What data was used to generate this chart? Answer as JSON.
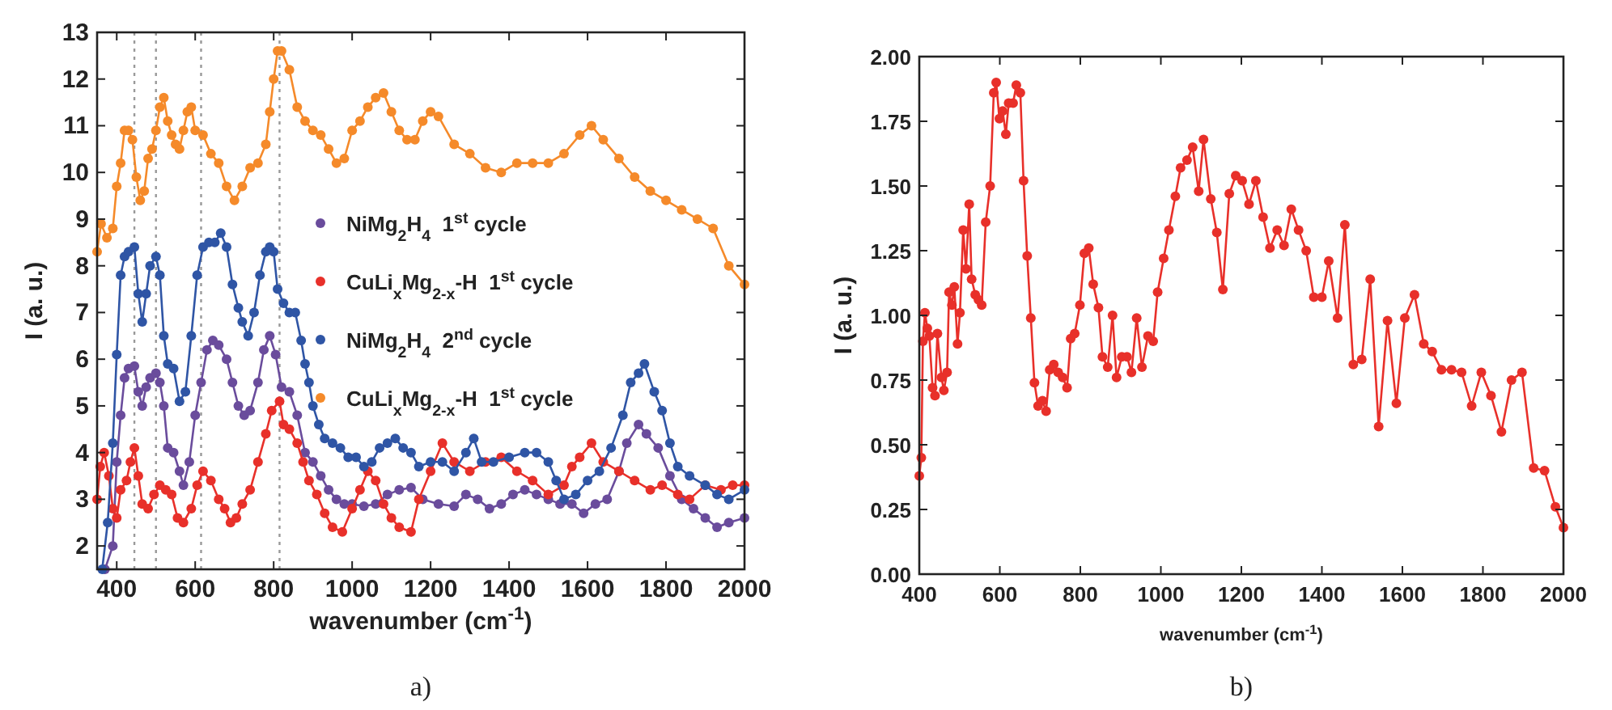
{
  "chart_data": [
    {
      "type": "line",
      "xlabel": "wavenumber (cm$^{-1}$)",
      "ylabel": "I (a. u.)",
      "xlim": [
        350,
        2000
      ],
      "ylim": [
        1.5,
        13
      ],
      "xticks": [
        400,
        600,
        800,
        1000,
        1200,
        1400,
        1600,
        1800,
        2000
      ],
      "yticks": [
        2,
        3,
        4,
        5,
        6,
        7,
        8,
        9,
        10,
        11,
        12,
        13
      ],
      "marker": "circle",
      "line_style": "solid",
      "legend": "right",
      "annotations": [
        "a)"
      ],
      "ref_lines": [
        {
          "axis": "x",
          "value": 445,
          "color": "#999999",
          "line_style": "dotted"
        },
        {
          "axis": "x",
          "value": 500,
          "color": "#999999",
          "line_style": "dotted"
        },
        {
          "axis": "x",
          "value": 615,
          "color": "#999999",
          "line_style": "dotted"
        },
        {
          "axis": "x",
          "value": 815,
          "color": "#999999",
          "line_style": "dotted"
        }
      ],
      "series": [
        {
          "name": "NiMg$_{2}$H$_{4}$  1$^{st}$ cycle",
          "color": "#6a4c9c",
          "x": [
            370,
            390,
            400,
            410,
            420,
            430,
            445,
            455,
            465,
            475,
            485,
            500,
            510,
            520,
            530,
            545,
            560,
            570,
            585,
            600,
            615,
            630,
            645,
            660,
            680,
            695,
            710,
            725,
            740,
            760,
            775,
            790,
            805,
            820,
            840,
            860,
            880,
            900,
            920,
            940,
            960,
            980,
            1000,
            1030,
            1060,
            1090,
            1120,
            1150,
            1180,
            1220,
            1260,
            1290,
            1320,
            1350,
            1380,
            1410,
            1440,
            1470,
            1500,
            1530,
            1560,
            1590,
            1620,
            1650,
            1680,
            1700,
            1730,
            1750,
            1780,
            1810,
            1840,
            1870,
            1900,
            1930,
            1960,
            2000
          ],
          "values": [
            1.5,
            2.0,
            3.8,
            4.8,
            5.6,
            5.8,
            5.85,
            5.3,
            5.0,
            5.4,
            5.6,
            5.7,
            5.5,
            5.0,
            4.1,
            4.0,
            3.6,
            3.3,
            3.8,
            4.8,
            5.5,
            6.2,
            6.4,
            6.3,
            6.0,
            5.5,
            5.0,
            4.8,
            4.9,
            5.5,
            6.2,
            6.5,
            6.1,
            5.4,
            5.3,
            4.8,
            4.0,
            3.8,
            3.5,
            3.2,
            3.0,
            2.9,
            2.9,
            2.85,
            2.9,
            3.1,
            3.2,
            3.25,
            3.0,
            2.9,
            2.85,
            3.1,
            3.0,
            2.8,
            2.9,
            3.1,
            3.2,
            3.1,
            3.0,
            2.9,
            2.9,
            2.7,
            2.9,
            3.0,
            3.6,
            4.2,
            4.6,
            4.4,
            4.1,
            3.5,
            3.0,
            2.8,
            2.6,
            2.4,
            2.5,
            2.6
          ]
        },
        {
          "name": "CuLi$_{x}$Mg$_{2-x}$-H  1$^{st}$ cycle",
          "color": "#e8302a",
          "x": [
            350,
            358,
            368,
            380,
            390,
            400,
            410,
            425,
            435,
            445,
            455,
            465,
            480,
            495,
            510,
            525,
            540,
            555,
            570,
            590,
            605,
            620,
            640,
            660,
            675,
            690,
            705,
            720,
            740,
            760,
            780,
            795,
            815,
            825,
            840,
            860,
            875,
            890,
            910,
            930,
            950,
            975,
            1000,
            1020,
            1040,
            1060,
            1080,
            1100,
            1120,
            1150,
            1170,
            1200,
            1230,
            1260,
            1300,
            1340,
            1380,
            1420,
            1460,
            1500,
            1540,
            1560,
            1580,
            1610,
            1640,
            1680,
            1720,
            1760,
            1790,
            1830,
            1860,
            1900,
            1940,
            1970,
            2000
          ],
          "values": [
            3.0,
            3.7,
            4.0,
            3.5,
            2.8,
            2.6,
            3.2,
            3.4,
            3.8,
            4.1,
            3.5,
            2.9,
            2.8,
            3.1,
            3.3,
            3.2,
            3.1,
            2.6,
            2.5,
            2.8,
            3.3,
            3.6,
            3.4,
            3.0,
            2.8,
            2.5,
            2.6,
            2.9,
            3.2,
            3.8,
            4.4,
            4.9,
            5.1,
            4.6,
            4.5,
            4.2,
            3.8,
            3.4,
            3.1,
            2.7,
            2.4,
            2.3,
            2.8,
            3.2,
            3.6,
            3.4,
            2.9,
            2.6,
            2.4,
            2.3,
            3.0,
            3.6,
            4.2,
            3.8,
            3.6,
            3.8,
            3.9,
            3.6,
            3.4,
            3.1,
            3.3,
            3.7,
            3.9,
            4.2,
            3.8,
            3.6,
            3.4,
            3.2,
            3.3,
            3.1,
            3.0,
            3.3,
            3.2,
            3.3,
            3.3
          ]
        },
        {
          "name": "NiMg$_{2}$H$_{4}$  2$^{nd}$ cycle",
          "color": "#2f55a5",
          "x": [
            363,
            377,
            390,
            400,
            410,
            420,
            430,
            445,
            455,
            465,
            475,
            485,
            500,
            510,
            520,
            530,
            545,
            560,
            575,
            590,
            605,
            620,
            635,
            650,
            665,
            680,
            695,
            710,
            720,
            735,
            750,
            765,
            780,
            790,
            800,
            810,
            825,
            840,
            855,
            870,
            880,
            890,
            900,
            915,
            930,
            950,
            970,
            990,
            1010,
            1030,
            1050,
            1070,
            1090,
            1110,
            1130,
            1150,
            1170,
            1200,
            1230,
            1260,
            1290,
            1310,
            1330,
            1360,
            1400,
            1440,
            1470,
            1500,
            1520,
            1540,
            1570,
            1600,
            1630,
            1660,
            1690,
            1710,
            1730,
            1745,
            1770,
            1790,
            1810,
            1830,
            1860,
            1900,
            1930,
            1960,
            2000
          ],
          "values": [
            1.5,
            2.5,
            4.2,
            6.1,
            7.8,
            8.2,
            8.3,
            8.4,
            7.4,
            6.8,
            7.4,
            8.0,
            8.2,
            7.8,
            6.5,
            5.9,
            5.8,
            5.1,
            5.3,
            6.5,
            7.8,
            8.4,
            8.5,
            8.5,
            8.7,
            8.4,
            7.6,
            7.1,
            6.8,
            6.5,
            7.0,
            7.8,
            8.3,
            8.4,
            8.3,
            7.5,
            7.2,
            7.0,
            7.0,
            6.4,
            5.9,
            5.5,
            5.0,
            4.6,
            4.3,
            4.2,
            4.1,
            3.9,
            3.9,
            3.7,
            3.8,
            4.1,
            4.2,
            4.3,
            4.1,
            4.0,
            3.7,
            3.8,
            3.8,
            3.6,
            4.0,
            4.3,
            3.8,
            3.8,
            3.9,
            4.0,
            4.0,
            3.8,
            3.4,
            3.0,
            3.1,
            3.4,
            3.6,
            4.1,
            4.8,
            5.5,
            5.7,
            5.9,
            5.3,
            4.9,
            4.2,
            3.7,
            3.5,
            3.3,
            3.1,
            3.0,
            3.2
          ]
        },
        {
          "name": "CuLi$_{x}$Mg$_{2-x}$-H  1$^{st}$ cycle",
          "color": "#f58a2a",
          "x": [
            350,
            360,
            375,
            390,
            400,
            410,
            420,
            430,
            440,
            450,
            460,
            470,
            480,
            490,
            500,
            510,
            520,
            530,
            540,
            550,
            560,
            570,
            580,
            590,
            600,
            620,
            640,
            660,
            680,
            700,
            720,
            740,
            760,
            780,
            790,
            800,
            810,
            820,
            840,
            860,
            880,
            900,
            920,
            940,
            960,
            980,
            1000,
            1020,
            1040,
            1060,
            1080,
            1100,
            1120,
            1140,
            1160,
            1180,
            1200,
            1220,
            1260,
            1300,
            1340,
            1380,
            1420,
            1460,
            1500,
            1540,
            1580,
            1610,
            1640,
            1680,
            1720,
            1760,
            1800,
            1840,
            1880,
            1920,
            1960,
            2000
          ],
          "values": [
            8.3,
            8.9,
            8.6,
            8.8,
            9.7,
            10.2,
            10.9,
            10.9,
            10.7,
            9.9,
            9.4,
            9.6,
            10.3,
            10.5,
            10.9,
            11.4,
            11.6,
            11.1,
            10.8,
            10.6,
            10.5,
            10.9,
            11.3,
            11.4,
            10.9,
            10.8,
            10.4,
            10.2,
            9.7,
            9.4,
            9.7,
            10.1,
            10.2,
            10.6,
            11.3,
            12.0,
            12.6,
            12.6,
            12.2,
            11.4,
            11.1,
            10.9,
            10.8,
            10.5,
            10.2,
            10.3,
            10.9,
            11.1,
            11.4,
            11.6,
            11.7,
            11.3,
            10.9,
            10.7,
            10.7,
            11.1,
            11.3,
            11.2,
            10.6,
            10.4,
            10.1,
            10.0,
            10.2,
            10.2,
            10.2,
            10.4,
            10.8,
            11.0,
            10.7,
            10.3,
            9.9,
            9.6,
            9.4,
            9.2,
            9.0,
            8.8,
            8.0,
            7.6
          ]
        }
      ]
    },
    {
      "type": "line",
      "xlabel": "wavenumber (cm$^{-1}$)",
      "ylabel": "I (a. u.)",
      "xlim": [
        400,
        2000
      ],
      "ylim": [
        0,
        2
      ],
      "xticks": [
        400,
        600,
        800,
        1000,
        1200,
        1400,
        1600,
        1800,
        2000
      ],
      "yticks": [
        {
          "value": 0,
          "label": "0.00"
        },
        {
          "value": 0.25,
          "label": "0.25"
        },
        {
          "value": 0.5,
          "label": "0.50"
        },
        {
          "value": 0.75,
          "label": "0.75"
        },
        {
          "value": 1,
          "label": "1.00"
        },
        {
          "value": 1.25,
          "label": "1.25"
        },
        {
          "value": 1.5,
          "label": "1.50"
        },
        {
          "value": 1.75,
          "label": "1.75"
        },
        {
          "value": 2,
          "label": "2.00"
        }
      ],
      "marker": "circle",
      "line_style": "solid",
      "annotations": [
        "b)"
      ],
      "series": [
        {
          "color": "#e8302a",
          "x": [
            400,
            405,
            409,
            414,
            420,
            425,
            433,
            439,
            445,
            455,
            461,
            469,
            474,
            481,
            487,
            495,
            501,
            509,
            516,
            524,
            530,
            539,
            547,
            555,
            565,
            576,
            585,
            591,
            599,
            607,
            615,
            622,
            633,
            641,
            651,
            659,
            668,
            677,
            686,
            695,
            706,
            715,
            724,
            734,
            745,
            756,
            767,
            776,
            786,
            799,
            810,
            821,
            832,
            845,
            855,
            868,
            880,
            890,
            903,
            916,
            927,
            940,
            953,
            968,
            981,
            992,
            1007,
            1020,
            1036,
            1049,
            1065,
            1079,
            1094,
            1106,
            1124,
            1139,
            1154,
            1170,
            1186,
            1202,
            1219,
            1236,
            1254,
            1271,
            1289,
            1306,
            1324,
            1342,
            1361,
            1380,
            1400,
            1417,
            1439,
            1457,
            1478,
            1499,
            1520,
            1541,
            1563,
            1585,
            1606,
            1630,
            1653,
            1674,
            1697,
            1722,
            1747,
            1772,
            1796,
            1820,
            1846,
            1871,
            1897,
            1926,
            1953,
            1980,
            2000
          ],
          "values": [
            0.38,
            0.45,
            0.9,
            1.01,
            0.95,
            0.92,
            0.72,
            0.69,
            0.93,
            0.76,
            0.71,
            0.78,
            1.09,
            1.04,
            1.11,
            0.89,
            1.01,
            1.33,
            1.18,
            1.43,
            1.14,
            1.08,
            1.06,
            1.04,
            1.36,
            1.5,
            1.86,
            1.9,
            1.76,
            1.79,
            1.7,
            1.82,
            1.82,
            1.89,
            1.86,
            1.52,
            1.23,
            0.99,
            0.74,
            0.65,
            0.67,
            0.63,
            0.79,
            0.81,
            0.78,
            0.76,
            0.72,
            0.91,
            0.93,
            1.04,
            1.24,
            1.26,
            1.12,
            1.03,
            0.84,
            0.8,
            1.0,
            0.76,
            0.84,
            0.84,
            0.78,
            0.99,
            0.8,
            0.92,
            0.9,
            1.09,
            1.22,
            1.33,
            1.46,
            1.57,
            1.6,
            1.65,
            1.48,
            1.68,
            1.45,
            1.32,
            1.1,
            1.47,
            1.54,
            1.52,
            1.43,
            1.52,
            1.38,
            1.26,
            1.33,
            1.27,
            1.41,
            1.33,
            1.25,
            1.07,
            1.07,
            1.21,
            0.99,
            1.35,
            0.81,
            0.83,
            1.14,
            0.57,
            0.98,
            0.66,
            0.99,
            1.08,
            0.89,
            0.86,
            0.79,
            0.79,
            0.78,
            0.65,
            0.78,
            0.69,
            0.55,
            0.75,
            0.78,
            0.41,
            0.4,
            0.26,
            0.18
          ]
        }
      ]
    }
  ]
}
